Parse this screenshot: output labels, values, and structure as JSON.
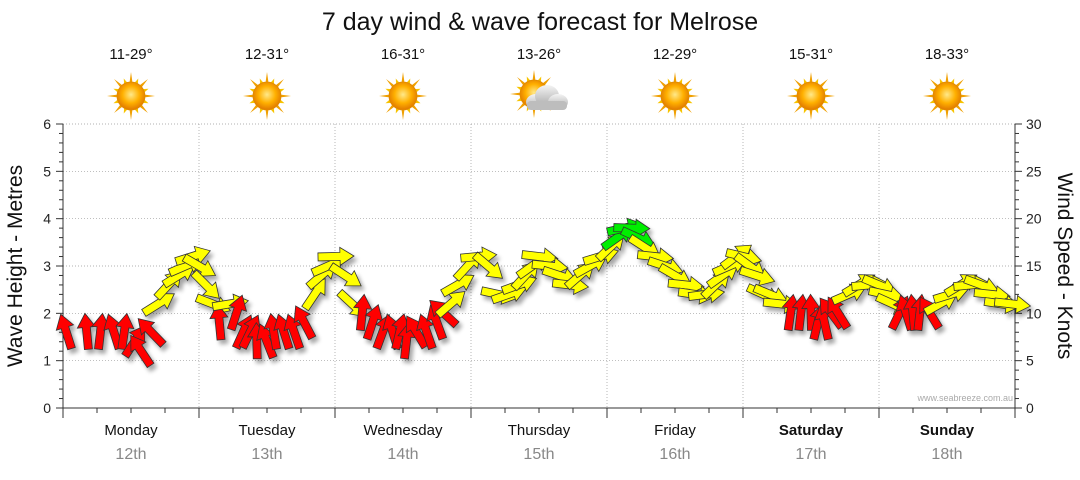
{
  "chart_data": {
    "type": "line",
    "title": "7 day wind & wave forecast for Melrose",
    "ylabel_left": "Wave Height - Metres",
    "ylabel_right": "Wind Speed - Knots",
    "ylim_left": [
      0,
      6
    ],
    "ylim_right": [
      0,
      30
    ],
    "yticks_left": [
      "0",
      "1",
      "2",
      "3",
      "4",
      "5",
      "6"
    ],
    "yticks_right": [
      "0",
      "5",
      "10",
      "15",
      "20",
      "25",
      "30"
    ],
    "watermark": "www.seabreeze.com.au",
    "days": [
      {
        "name": "Monday",
        "date": "12th",
        "temp": "11-29°",
        "weather": "sunny-icon",
        "bold": false
      },
      {
        "name": "Tuesday",
        "date": "13th",
        "temp": "12-31°",
        "weather": "sunny-icon",
        "bold": false
      },
      {
        "name": "Wednesday",
        "date": "14th",
        "temp": "16-31°",
        "weather": "sunny-icon",
        "bold": false
      },
      {
        "name": "Thursday",
        "date": "15th",
        "temp": "13-26°",
        "weather": "partly-cloudy-icon",
        "bold": false
      },
      {
        "name": "Friday",
        "date": "16th",
        "temp": "12-29°",
        "weather": "sunny-icon",
        "bold": false
      },
      {
        "name": "Saturday",
        "date": "17th",
        "temp": "15-31°",
        "weather": "sunny-icon",
        "bold": true
      },
      {
        "name": "Sunday",
        "date": "18th",
        "temp": "18-33°",
        "weather": "sunny-icon",
        "bold": true
      }
    ],
    "wind_series": {
      "name": "Wind speed (knots) with direction",
      "x_days": [
        0.05,
        0.35,
        0.55,
        0.75,
        0.9,
        1.05,
        1.15,
        1.3,
        1.4,
        1.55,
        1.7,
        1.8,
        1.9,
        2.0,
        2.1,
        2.2,
        2.3,
        2.45,
        2.55,
        2.65,
        2.75,
        2.85,
        3.0,
        3.1,
        3.25,
        3.4,
        3.55,
        3.7,
        3.8,
        3.9,
        4.0,
        4.15,
        4.25,
        4.4,
        4.55,
        4.7,
        4.85,
        4.95,
        5.05,
        5.2,
        5.35,
        5.5,
        5.6,
        5.7,
        5.8,
        5.95,
        6.1,
        6.25,
        6.4,
        6.55,
        6.7,
        6.8,
        6.9,
        7.0,
        7.15,
        7.3,
        7.45,
        7.6,
        7.75,
        7.9,
        8.05,
        8.15,
        8.25,
        8.35,
        8.45,
        8.55,
        8.7,
        8.85,
        9.0,
        9.15,
        9.3,
        9.45,
        9.6,
        9.7,
        9.8,
        9.9,
        10.0,
        10.1,
        10.2,
        10.3,
        10.4,
        10.55,
        10.7,
        10.85,
        11.0,
        11.1,
        11.2,
        11.3,
        11.4,
        11.55,
        11.7,
        11.85,
        12.0,
        12.1,
        12.2,
        12.3,
        12.4,
        12.5,
        12.6,
        12.75,
        12.9,
        13.05,
        13.2,
        13.35,
        13.5,
        13.65,
        13.8,
        13.95
      ],
      "knots": [
        8,
        8,
        8,
        8,
        8,
        7,
        6,
        8,
        11,
        13,
        14,
        15,
        16,
        15,
        13,
        11,
        9,
        11,
        10,
        8,
        8,
        7,
        7,
        8,
        8,
        8,
        9,
        12,
        14,
        15,
        16,
        14,
        11,
        10,
        9,
        8,
        8,
        8,
        7,
        8,
        8,
        9,
        10,
        11,
        13,
        15,
        16,
        15,
        12,
        12,
        13,
        14,
        15,
        16,
        15,
        14,
        13,
        14,
        15,
        16,
        17,
        18,
        19,
        19,
        18,
        17,
        16,
        15,
        14,
        13,
        12,
        12,
        13,
        14,
        15,
        16,
        16,
        15,
        14,
        12,
        12,
        11,
        10,
        10,
        10,
        9,
        9,
        10,
        10,
        12,
        13,
        13,
        13,
        12,
        11,
        10,
        10,
        10,
        10,
        10,
        11,
        12,
        13,
        13,
        13,
        12,
        11,
        11
      ],
      "color_thresholds": {
        "red_below": 11,
        "yellow_below": 18
      },
      "colors": {
        "low": "#ff0000",
        "mid": "#ffff00",
        "high": "#00ee00"
      }
    }
  }
}
